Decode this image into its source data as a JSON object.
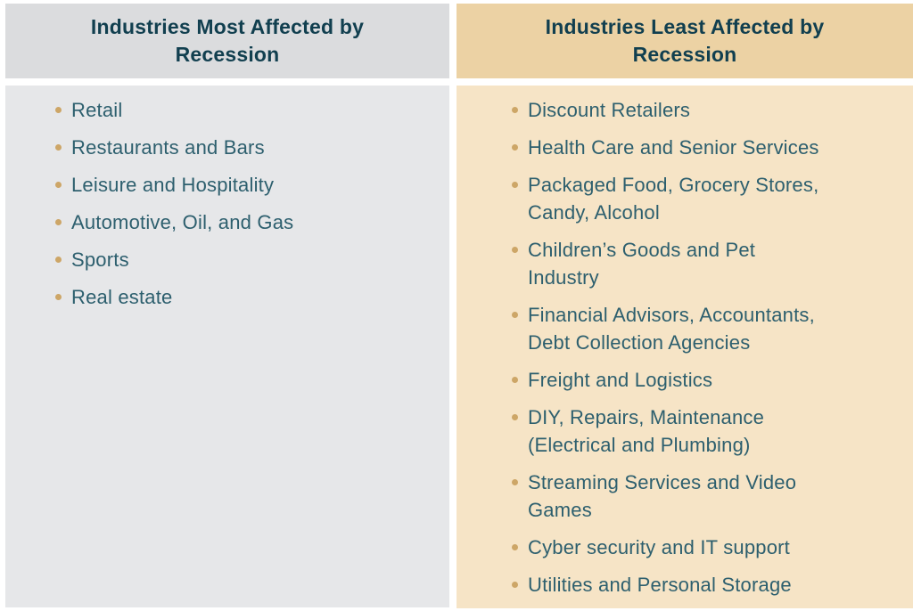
{
  "chart_data": {
    "type": "table",
    "title": "",
    "columns": [
      {
        "header": "Industries Most Affected by\nRecession",
        "items": [
          "Retail",
          "Restaurants and Bars",
          "Leisure and Hospitality",
          "Automotive, Oil, and Gas",
          "Sports",
          "Real estate"
        ]
      },
      {
        "header": "Industries Least Affected by\nRecession",
        "items": [
          "Discount Retailers",
          "Health Care and Senior Services",
          "Packaged Food, Grocery Stores,\nCandy, Alcohol",
          "Children’s Goods and Pet\nIndustry",
          "Financial Advisors, Accountants,\nDebt Collection Agencies",
          "Freight and Logistics",
          "DIY, Repairs, Maintenance\n(Electrical and Plumbing)",
          "Streaming Services and Video\nGames",
          "Cyber security and IT support",
          "Utilities and Personal Storage"
        ]
      }
    ]
  },
  "colors": {
    "page_bg": "#ffffff",
    "most_header_bg": "#dbdcde",
    "most_body_bg": "#e6e7e9",
    "least_header_bg": "#ecd2a4",
    "least_body_bg": "#f6e4c6",
    "header_text": "#113f4f",
    "item_text": "#2d5f6e",
    "bullet": "#cda667"
  },
  "icons": {
    "bullet": "gold-dot"
  }
}
